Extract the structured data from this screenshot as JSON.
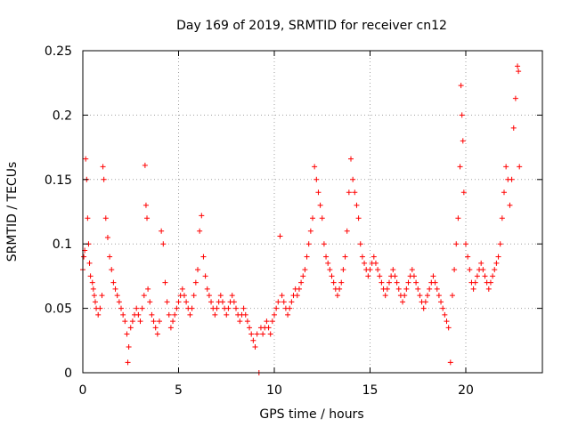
{
  "chart_data": {
    "type": "scatter",
    "title": "Day 169 of 2019, SRMTID for receiver cn12",
    "xlabel": "GPS time / hours",
    "ylabel": "SRMTID / TECUs",
    "xlim": [
      0,
      24
    ],
    "ylim": [
      0,
      0.25
    ],
    "x_ticks": [
      0,
      5,
      10,
      15,
      20
    ],
    "x_tick_labels": [
      "0",
      "5",
      "10",
      "15",
      "20"
    ],
    "y_ticks": [
      0,
      0.05,
      0.1,
      0.15,
      0.2,
      0.25
    ],
    "y_tick_labels": [
      "0",
      "0.05",
      "0.1",
      "0.15",
      "0.2",
      "0.25"
    ],
    "grid": true,
    "marker": "+",
    "color": "#ff0000",
    "series": [
      {
        "name": "SRMTID",
        "points": [
          [
            0.0,
            0.08
          ],
          [
            0.05,
            0.09
          ],
          [
            0.1,
            0.095
          ],
          [
            0.15,
            0.166
          ],
          [
            0.2,
            0.15
          ],
          [
            0.25,
            0.12
          ],
          [
            0.3,
            0.1
          ],
          [
            0.35,
            0.085
          ],
          [
            0.4,
            0.075
          ],
          [
            0.5,
            0.07
          ],
          [
            0.55,
            0.065
          ],
          [
            0.6,
            0.06
          ],
          [
            0.65,
            0.055
          ],
          [
            0.7,
            0.05
          ],
          [
            0.8,
            0.045
          ],
          [
            0.9,
            0.05
          ],
          [
            1.0,
            0.06
          ],
          [
            1.05,
            0.16
          ],
          [
            1.1,
            0.15
          ],
          [
            1.2,
            0.12
          ],
          [
            1.3,
            0.105
          ],
          [
            1.4,
            0.09
          ],
          [
            1.5,
            0.08
          ],
          [
            1.6,
            0.07
          ],
          [
            1.7,
            0.065
          ],
          [
            1.8,
            0.06
          ],
          [
            1.9,
            0.055
          ],
          [
            2.0,
            0.05
          ],
          [
            2.1,
            0.045
          ],
          [
            2.2,
            0.04
          ],
          [
            2.3,
            0.03
          ],
          [
            2.35,
            0.008
          ],
          [
            2.4,
            0.02
          ],
          [
            2.5,
            0.035
          ],
          [
            2.6,
            0.04
          ],
          [
            2.7,
            0.045
          ],
          [
            2.8,
            0.05
          ],
          [
            2.9,
            0.045
          ],
          [
            3.0,
            0.04
          ],
          [
            3.1,
            0.05
          ],
          [
            3.2,
            0.06
          ],
          [
            3.25,
            0.161
          ],
          [
            3.3,
            0.13
          ],
          [
            3.35,
            0.12
          ],
          [
            3.4,
            0.065
          ],
          [
            3.5,
            0.055
          ],
          [
            3.6,
            0.045
          ],
          [
            3.7,
            0.04
          ],
          [
            3.8,
            0.035
          ],
          [
            3.9,
            0.03
          ],
          [
            4.0,
            0.04
          ],
          [
            4.1,
            0.11
          ],
          [
            4.2,
            0.1
          ],
          [
            4.3,
            0.07
          ],
          [
            4.4,
            0.055
          ],
          [
            4.5,
            0.045
          ],
          [
            4.6,
            0.035
          ],
          [
            4.7,
            0.04
          ],
          [
            4.8,
            0.045
          ],
          [
            4.9,
            0.05
          ],
          [
            5.0,
            0.055
          ],
          [
            5.1,
            0.06
          ],
          [
            5.2,
            0.065
          ],
          [
            5.3,
            0.06
          ],
          [
            5.4,
            0.055
          ],
          [
            5.5,
            0.05
          ],
          [
            5.6,
            0.045
          ],
          [
            5.7,
            0.05
          ],
          [
            5.8,
            0.06
          ],
          [
            5.9,
            0.07
          ],
          [
            6.0,
            0.08
          ],
          [
            6.1,
            0.11
          ],
          [
            6.2,
            0.122
          ],
          [
            6.3,
            0.09
          ],
          [
            6.4,
            0.075
          ],
          [
            6.5,
            0.065
          ],
          [
            6.6,
            0.06
          ],
          [
            6.7,
            0.055
          ],
          [
            6.8,
            0.05
          ],
          [
            6.9,
            0.045
          ],
          [
            7.0,
            0.05
          ],
          [
            7.1,
            0.055
          ],
          [
            7.2,
            0.06
          ],
          [
            7.3,
            0.055
          ],
          [
            7.4,
            0.05
          ],
          [
            7.5,
            0.045
          ],
          [
            7.6,
            0.05
          ],
          [
            7.7,
            0.055
          ],
          [
            7.8,
            0.06
          ],
          [
            7.9,
            0.055
          ],
          [
            8.0,
            0.05
          ],
          [
            8.1,
            0.045
          ],
          [
            8.2,
            0.04
          ],
          [
            8.3,
            0.045
          ],
          [
            8.4,
            0.05
          ],
          [
            8.5,
            0.045
          ],
          [
            8.6,
            0.04
          ],
          [
            8.7,
            0.035
          ],
          [
            8.8,
            0.03
          ],
          [
            8.9,
            0.025
          ],
          [
            9.0,
            0.02
          ],
          [
            9.1,
            0.03
          ],
          [
            9.2,
            0.0
          ],
          [
            9.3,
            0.035
          ],
          [
            9.4,
            0.03
          ],
          [
            9.5,
            0.035
          ],
          [
            9.6,
            0.04
          ],
          [
            9.7,
            0.035
          ],
          [
            9.8,
            0.03
          ],
          [
            9.9,
            0.04
          ],
          [
            10.0,
            0.045
          ],
          [
            10.1,
            0.05
          ],
          [
            10.2,
            0.055
          ],
          [
            10.3,
            0.106
          ],
          [
            10.4,
            0.06
          ],
          [
            10.5,
            0.055
          ],
          [
            10.6,
            0.05
          ],
          [
            10.7,
            0.045
          ],
          [
            10.8,
            0.05
          ],
          [
            10.9,
            0.055
          ],
          [
            11.0,
            0.06
          ],
          [
            11.1,
            0.065
          ],
          [
            11.2,
            0.06
          ],
          [
            11.3,
            0.065
          ],
          [
            11.4,
            0.07
          ],
          [
            11.5,
            0.075
          ],
          [
            11.6,
            0.08
          ],
          [
            11.7,
            0.09
          ],
          [
            11.8,
            0.1
          ],
          [
            11.9,
            0.11
          ],
          [
            12.0,
            0.12
          ],
          [
            12.1,
            0.16
          ],
          [
            12.2,
            0.15
          ],
          [
            12.3,
            0.14
          ],
          [
            12.4,
            0.13
          ],
          [
            12.5,
            0.12
          ],
          [
            12.6,
            0.1
          ],
          [
            12.7,
            0.09
          ],
          [
            12.8,
            0.085
          ],
          [
            12.9,
            0.08
          ],
          [
            13.0,
            0.075
          ],
          [
            13.1,
            0.07
          ],
          [
            13.2,
            0.065
          ],
          [
            13.3,
            0.06
          ],
          [
            13.4,
            0.065
          ],
          [
            13.5,
            0.07
          ],
          [
            13.6,
            0.08
          ],
          [
            13.7,
            0.09
          ],
          [
            13.8,
            0.11
          ],
          [
            13.9,
            0.14
          ],
          [
            14.0,
            0.166
          ],
          [
            14.1,
            0.15
          ],
          [
            14.2,
            0.14
          ],
          [
            14.3,
            0.13
          ],
          [
            14.4,
            0.12
          ],
          [
            14.5,
            0.1
          ],
          [
            14.6,
            0.09
          ],
          [
            14.7,
            0.085
          ],
          [
            14.8,
            0.08
          ],
          [
            14.9,
            0.075
          ],
          [
            15.0,
            0.08
          ],
          [
            15.1,
            0.085
          ],
          [
            15.2,
            0.09
          ],
          [
            15.3,
            0.085
          ],
          [
            15.4,
            0.08
          ],
          [
            15.5,
            0.075
          ],
          [
            15.6,
            0.07
          ],
          [
            15.7,
            0.065
          ],
          [
            15.8,
            0.06
          ],
          [
            15.9,
            0.065
          ],
          [
            16.0,
            0.07
          ],
          [
            16.1,
            0.075
          ],
          [
            16.2,
            0.08
          ],
          [
            16.3,
            0.075
          ],
          [
            16.4,
            0.07
          ],
          [
            16.5,
            0.065
          ],
          [
            16.6,
            0.06
          ],
          [
            16.7,
            0.055
          ],
          [
            16.8,
            0.06
          ],
          [
            16.9,
            0.065
          ],
          [
            17.0,
            0.07
          ],
          [
            17.1,
            0.075
          ],
          [
            17.2,
            0.08
          ],
          [
            17.3,
            0.075
          ],
          [
            17.4,
            0.07
          ],
          [
            17.5,
            0.065
          ],
          [
            17.6,
            0.06
          ],
          [
            17.7,
            0.055
          ],
          [
            17.8,
            0.05
          ],
          [
            17.9,
            0.055
          ],
          [
            18.0,
            0.06
          ],
          [
            18.1,
            0.065
          ],
          [
            18.2,
            0.07
          ],
          [
            18.3,
            0.075
          ],
          [
            18.4,
            0.07
          ],
          [
            18.5,
            0.065
          ],
          [
            18.6,
            0.06
          ],
          [
            18.7,
            0.055
          ],
          [
            18.8,
            0.05
          ],
          [
            18.9,
            0.045
          ],
          [
            19.0,
            0.04
          ],
          [
            19.1,
            0.035
          ],
          [
            19.2,
            0.008
          ],
          [
            19.3,
            0.06
          ],
          [
            19.4,
            0.08
          ],
          [
            19.5,
            0.1
          ],
          [
            19.6,
            0.12
          ],
          [
            19.7,
            0.16
          ],
          [
            19.75,
            0.223
          ],
          [
            19.8,
            0.2
          ],
          [
            19.85,
            0.18
          ],
          [
            19.9,
            0.14
          ],
          [
            20.0,
            0.1
          ],
          [
            20.1,
            0.09
          ],
          [
            20.2,
            0.08
          ],
          [
            20.3,
            0.07
          ],
          [
            20.4,
            0.065
          ],
          [
            20.5,
            0.07
          ],
          [
            20.6,
            0.075
          ],
          [
            20.7,
            0.08
          ],
          [
            20.8,
            0.085
          ],
          [
            20.9,
            0.08
          ],
          [
            21.0,
            0.075
          ],
          [
            21.1,
            0.07
          ],
          [
            21.2,
            0.065
          ],
          [
            21.3,
            0.07
          ],
          [
            21.4,
            0.075
          ],
          [
            21.5,
            0.08
          ],
          [
            21.6,
            0.085
          ],
          [
            21.7,
            0.09
          ],
          [
            21.8,
            0.1
          ],
          [
            21.9,
            0.12
          ],
          [
            22.0,
            0.14
          ],
          [
            22.1,
            0.16
          ],
          [
            22.2,
            0.15
          ],
          [
            22.3,
            0.13
          ],
          [
            22.4,
            0.15
          ],
          [
            22.5,
            0.19
          ],
          [
            22.6,
            0.213
          ],
          [
            22.7,
            0.238
          ],
          [
            22.75,
            0.234
          ],
          [
            22.8,
            0.16
          ]
        ]
      }
    ]
  }
}
